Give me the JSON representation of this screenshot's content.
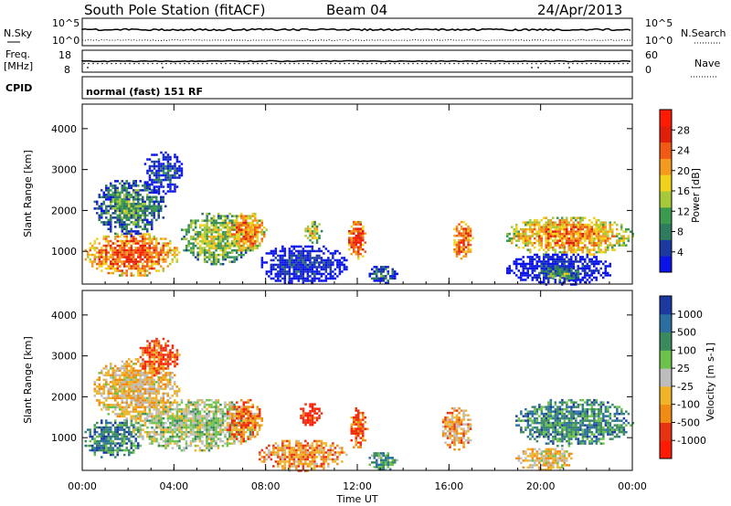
{
  "header": {
    "station": "South Pole Station (fitACF)",
    "beam": "Beam 04",
    "date": "24/Apr/2013"
  },
  "top_panels": {
    "nsky_label": "N.Sky",
    "nsearch_label": "N.Search",
    "noise_tick_high": "10^5",
    "noise_tick_low": "10^0",
    "freq_label_line1": "Freq.",
    "freq_label_line2": "[MHz]",
    "freq_ticks": [
      "18",
      "8"
    ],
    "nave_label": "Nave",
    "nave_ticks": [
      "60",
      "0"
    ],
    "cpid_label": "CPID",
    "cpid_text": "normal (fast) 151 RF"
  },
  "colors": {
    "power_scale": [
      "#0a14e8",
      "#1a3aa0",
      "#2e7b5e",
      "#3a9a4e",
      "#a6c93a",
      "#f0d21a",
      "#f49a1e",
      "#f05a14",
      "#e01e0a",
      "#ff1a00"
    ],
    "velocity_scale": [
      "#ff1a00",
      "#e83214",
      "#f08c14",
      "#f0b428",
      "#bdbdbd",
      "#6cc24a",
      "#3a8a5e",
      "#2a6fa0",
      "#1a3aa0"
    ]
  },
  "chart_data": [
    {
      "type": "heatmap",
      "title": "",
      "xlabel": "",
      "ylabel": "Slant Range [km]",
      "x_ticks": [
        "00:00",
        "04:00",
        "08:00",
        "12:00",
        "16:00",
        "20:00",
        "00:00"
      ],
      "y_ticks": [
        "1000",
        "2000",
        "3000",
        "4000"
      ],
      "xlim": [
        0,
        24
      ],
      "ylim": [
        200,
        4600
      ],
      "colorbar": {
        "label": "Power [dB]",
        "ticks": [
          "4",
          "8",
          "12",
          "16",
          "20",
          "24",
          "28"
        ],
        "range": [
          0,
          32
        ]
      },
      "blobs": [
        {
          "t0": 0.0,
          "t1": 4.2,
          "r0": 400,
          "r1": 1500,
          "level": 0.8
        },
        {
          "t0": 0.4,
          "t1": 3.6,
          "r0": 1400,
          "r1": 2800,
          "level": 0.35
        },
        {
          "t0": 2.6,
          "t1": 4.4,
          "r0": 2400,
          "r1": 3500,
          "level": 0.15
        },
        {
          "t0": 4.2,
          "t1": 7.5,
          "r0": 700,
          "r1": 2000,
          "level": 0.5
        },
        {
          "t0": 6.3,
          "t1": 8.0,
          "r0": 1000,
          "r1": 2000,
          "level": 0.75
        },
        {
          "t0": 7.6,
          "t1": 11.6,
          "r0": 200,
          "r1": 1200,
          "level": 0.12
        },
        {
          "t0": 9.6,
          "t1": 10.4,
          "r0": 1200,
          "r1": 1800,
          "level": 0.55
        },
        {
          "t0": 11.5,
          "t1": 12.4,
          "r0": 800,
          "r1": 1800,
          "level": 0.85
        },
        {
          "t0": 12.4,
          "t1": 13.7,
          "r0": 200,
          "r1": 700,
          "level": 0.25
        },
        {
          "t0": 16.1,
          "t1": 17.0,
          "r0": 800,
          "r1": 1800,
          "level": 0.8
        },
        {
          "t0": 18.4,
          "t1": 24.0,
          "r0": 900,
          "r1": 1900,
          "level": 0.7
        },
        {
          "t0": 18.4,
          "t1": 23.2,
          "r0": 200,
          "r1": 1000,
          "level": 0.1
        },
        {
          "t0": 20.0,
          "t1": 21.8,
          "r0": 250,
          "r1": 700,
          "level": 0.4
        }
      ]
    },
    {
      "type": "heatmap",
      "title": "",
      "xlabel": "Time UT",
      "ylabel": "Slant Range [km]",
      "x_ticks": [
        "00:00",
        "04:00",
        "08:00",
        "12:00",
        "16:00",
        "20:00",
        "00:00"
      ],
      "y_ticks": [
        "1000",
        "2000",
        "3000",
        "4000"
      ],
      "xlim": [
        0,
        24
      ],
      "ylim": [
        200,
        4600
      ],
      "colorbar": {
        "label": "Velocity [m s-1]",
        "ticks": [
          "1000",
          "500",
          "100",
          "25",
          "-25",
          "-100",
          "-500",
          "-1000"
        ],
        "range": [
          -1000,
          1000
        ]
      },
      "blobs": [
        {
          "t0": 0.0,
          "t1": 2.6,
          "r0": 500,
          "r1": 1500,
          "level": 0.78
        },
        {
          "t0": 2.0,
          "t1": 7.8,
          "r0": 700,
          "r1": 2000,
          "level": 0.55
        },
        {
          "t0": 6.2,
          "t1": 7.8,
          "r0": 900,
          "r1": 2000,
          "level": 0.25
        },
        {
          "t0": 0.4,
          "t1": 4.2,
          "r0": 1400,
          "r1": 3000,
          "level": 0.4
        },
        {
          "t0": 2.4,
          "t1": 4.2,
          "r0": 2500,
          "r1": 3500,
          "level": 0.2
        },
        {
          "t0": 7.6,
          "t1": 11.5,
          "r0": 200,
          "r1": 1000,
          "level": 0.3
        },
        {
          "t0": 9.4,
          "t1": 10.4,
          "r0": 1300,
          "r1": 1900,
          "level": 0.08
        },
        {
          "t0": 11.6,
          "t1": 12.4,
          "r0": 700,
          "r1": 1800,
          "level": 0.2
        },
        {
          "t0": 12.4,
          "t1": 13.7,
          "r0": 200,
          "r1": 700,
          "level": 0.7
        },
        {
          "t0": 15.6,
          "t1": 17.0,
          "r0": 700,
          "r1": 1800,
          "level": 0.35
        },
        {
          "t0": 18.8,
          "t1": 24.0,
          "r0": 800,
          "r1": 2000,
          "level": 0.76
        },
        {
          "t0": 18.8,
          "t1": 21.5,
          "r0": 200,
          "r1": 800,
          "level": 0.4
        }
      ]
    }
  ]
}
